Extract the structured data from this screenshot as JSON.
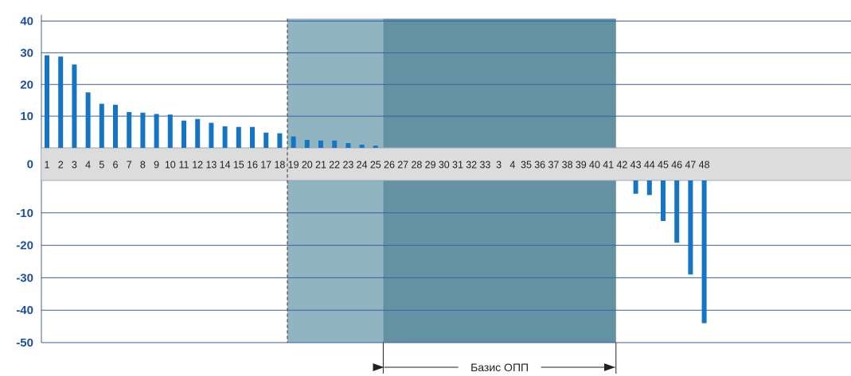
{
  "chart_data": {
    "type": "bar",
    "title": "",
    "xlabel": "",
    "ylabel": "",
    "ylim": [
      -50,
      40
    ],
    "yticks": [
      40,
      30,
      20,
      10,
      0,
      -10,
      -20,
      -30,
      -40,
      -50
    ],
    "grid": true,
    "categories": [
      "1",
      "2",
      "3",
      "4",
      "5",
      "6",
      "7",
      "8",
      "9",
      "10",
      "11",
      "12",
      "13",
      "14",
      "15",
      "16",
      "17",
      "18",
      "19",
      "20",
      "21",
      "22",
      "23",
      "24",
      "25",
      "26",
      "27",
      "28",
      "29",
      "30",
      "31",
      "32",
      "33",
      "3",
      "4",
      "35",
      "36",
      "37",
      "38",
      "39",
      "40",
      "41",
      "42",
      "43",
      "44",
      "45",
      "46",
      "47",
      "48"
    ],
    "values": [
      29.2,
      28.8,
      26.3,
      17.5,
      13.9,
      13.6,
      11.3,
      11.1,
      10.7,
      10.5,
      8.6,
      9.1,
      7.9,
      6.8,
      6.6,
      6.6,
      4.8,
      4.6,
      3.6,
      2.5,
      2.3,
      2.3,
      1.5,
      1.0,
      0.7,
      0,
      0,
      0,
      0,
      0,
      0,
      0,
      0,
      0,
      0,
      0,
      0,
      0,
      0,
      0,
      0,
      0,
      0,
      -4.1,
      -4.5,
      -12.5,
      -19.2,
      -29.0,
      -44.0
    ],
    "regions": [
      {
        "from_category": "19",
        "to_category": "26",
        "color": "#91b4c1"
      },
      {
        "from_category": "26",
        "to_category": "42",
        "color": "#6393a2"
      }
    ],
    "annotation": {
      "label": "Базис ОПП",
      "from_category": "26",
      "to_category": "42"
    },
    "colors": {
      "bar": "#1574c4",
      "zero_band": "#dcdcdc",
      "grid": "#3c5fa0",
      "tick": "#1f4e9e"
    }
  }
}
